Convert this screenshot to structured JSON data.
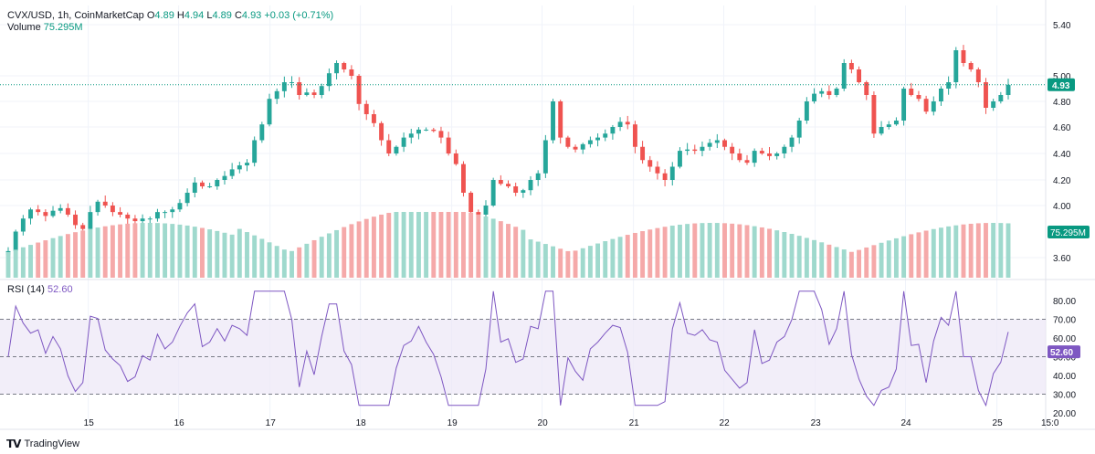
{
  "header": {
    "symbol": "CVX/USD, 1h, CoinMarketCap",
    "o_label": "O",
    "o_value": "4.89",
    "h_label": "H",
    "h_value": "4.94",
    "l_label": "L",
    "l_value": "4.89",
    "c_label": "C",
    "c_value": "4.93",
    "change": "+0.03 (+0.71%)",
    "volume_label": "Volume",
    "volume_value": "75.295M"
  },
  "rsi_legend": {
    "label": "RSI (14)",
    "value": "52.60"
  },
  "colors": {
    "up": "#26a69a",
    "down": "#ef5350",
    "vol_up": "#9fd9cd",
    "vol_down": "#f5a9a9",
    "rsi_line": "#7e57c2",
    "rsi_band": "#ede7f6",
    "price_badge": "#089981",
    "rsi_badge": "#7e57c2"
  },
  "branding": "TradingView",
  "chart_data": {
    "type": "candlestick",
    "price_axis": {
      "ticks": [
        "5.40",
        "5.00",
        "4.80",
        "4.60",
        "4.40",
        "4.20",
        "4.00",
        "3.60"
      ],
      "tick_values": [
        5.4,
        5.0,
        4.8,
        4.6,
        4.4,
        4.2,
        4.0,
        3.6
      ],
      "current_price_label": "4.93",
      "current_price": 4.93,
      "volume_label": "75.295M"
    },
    "time_axis": {
      "labels": [
        "15",
        "16",
        "17",
        "18",
        "19",
        "20",
        "21",
        "22",
        "23",
        "24",
        "25",
        "15:0"
      ],
      "label_positions_fraction": [
        0.078,
        0.165,
        0.253,
        0.34,
        0.428,
        0.515,
        0.603,
        0.69,
        0.778,
        0.865,
        0.953,
        1.0
      ]
    },
    "rsi": {
      "label": "RSI (14)",
      "value": 52.6,
      "ticks": [
        "80.00",
        "70.00",
        "60.00",
        "50.00",
        "40.00",
        "30.00",
        "20.00"
      ],
      "tick_values": [
        80,
        70,
        60,
        50,
        40,
        30,
        20
      ],
      "upper_band": 70,
      "middle": 50,
      "lower_band": 30
    },
    "close_trend": [
      3.65,
      3.8,
      3.9,
      3.97,
      3.95,
      3.92,
      3.96,
      3.98,
      3.93,
      3.85,
      3.82,
      3.95,
      4.03,
      4.0,
      3.95,
      3.93,
      3.9,
      3.88,
      3.9,
      3.9,
      3.95,
      3.95,
      3.97,
      4.02,
      4.1,
      4.18,
      4.15,
      4.15,
      4.2,
      4.23,
      4.28,
      4.31,
      4.33,
      4.5,
      4.62,
      4.82,
      4.88,
      4.95,
      4.95,
      4.85,
      4.87,
      4.85,
      4.92,
      5.02,
      5.1,
      5.05,
      5.0,
      4.78,
      4.7,
      4.63,
      4.5,
      4.4,
      4.45,
      4.52,
      4.55,
      4.58,
      4.58,
      4.57,
      4.52,
      4.4,
      4.32,
      4.1,
      3.95,
      3.93,
      4.0,
      4.2,
      4.17,
      4.15,
      4.1,
      4.12,
      4.2,
      4.25,
      4.5,
      4.8,
      4.52,
      4.45,
      4.43,
      4.47,
      4.5,
      4.52,
      4.55,
      4.6,
      4.64,
      4.62,
      4.45,
      4.35,
      4.3,
      4.25,
      4.2,
      4.3,
      4.42,
      4.43,
      4.42,
      4.45,
      4.48,
      4.5,
      4.45,
      4.4,
      4.35,
      4.33,
      4.42,
      4.4,
      4.38,
      4.4,
      4.45,
      4.52,
      4.65,
      4.8,
      4.86,
      4.88,
      4.85,
      4.9,
      5.1,
      5.05,
      4.95,
      4.85,
      4.55,
      4.6,
      4.62,
      4.65,
      4.9,
      4.85,
      4.82,
      4.72,
      4.8,
      4.9,
      4.95,
      5.2,
      5.1,
      5.05,
      4.95,
      4.75,
      4.8,
      4.85,
      4.93
    ]
  }
}
